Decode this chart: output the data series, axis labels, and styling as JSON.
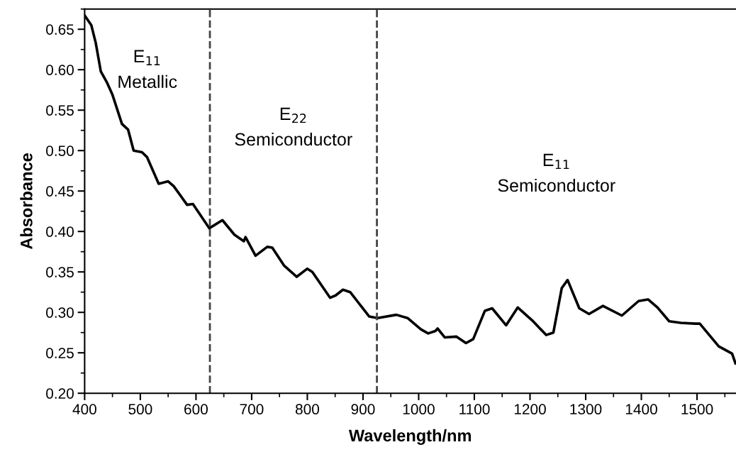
{
  "chart_data": {
    "type": "line",
    "xlabel": "Wavelength/nm",
    "ylabel": "Absorbance",
    "xlim": [
      400,
      1570
    ],
    "ylim": [
      0.2,
      0.675
    ],
    "xticks": [
      400,
      500,
      600,
      700,
      800,
      900,
      1000,
      1100,
      1200,
      1300,
      1400,
      1500
    ],
    "yticks": [
      {
        "value": 0.2,
        "label": "0.20"
      },
      {
        "value": 0.25,
        "label": "0.25"
      },
      {
        "value": 0.3,
        "label": "0.30"
      },
      {
        "value": 0.35,
        "label": "0.35"
      },
      {
        "value": 0.4,
        "label": "0.40"
      },
      {
        "value": 0.45,
        "label": "0.45"
      },
      {
        "value": 0.5,
        "label": "0.50"
      },
      {
        "value": 0.55,
        "label": "0.55"
      },
      {
        "value": 0.6,
        "label": "0.60"
      },
      {
        "value": 0.65,
        "label": "0.65"
      }
    ],
    "grid": false,
    "legend": false,
    "marker": "none",
    "line_style": "solid",
    "series": [
      {
        "color": "#000000",
        "x": [
          400,
          412,
          420,
          429,
          439.5,
          450,
          467,
          478,
          488,
          503,
          512,
          533,
          550,
          560,
          584,
          594.5,
          624,
          647.5,
          669,
          686,
          689,
          707,
          728,
          737,
          758,
          781,
          800,
          809,
          841,
          851,
          864,
          877,
          911,
          926,
          960,
          980,
          1004,
          1017,
          1030,
          1034,
          1047,
          1068,
          1085,
          1098,
          1119,
          1132,
          1157,
          1178,
          1204,
          1229,
          1242,
          1257,
          1267.5,
          1288.5,
          1306,
          1331,
          1365,
          1395,
          1412,
          1429,
          1450,
          1471,
          1497,
          1505,
          1539,
          1563,
          1569
        ],
        "values": [
          0.667,
          0.655,
          0.633,
          0.598,
          0.585,
          0.569,
          0.533,
          0.526,
          0.5,
          0.498,
          0.492,
          0.459,
          0.462,
          0.456,
          0.433,
          0.434,
          0.404,
          0.414,
          0.396,
          0.388,
          0.393,
          0.37,
          0.381,
          0.38,
          0.358,
          0.344,
          0.354,
          0.35,
          0.318,
          0.321,
          0.328,
          0.325,
          0.295,
          0.293,
          0.297,
          0.293,
          0.279,
          0.274,
          0.277,
          0.28,
          0.269,
          0.27,
          0.262,
          0.267,
          0.302,
          0.305,
          0.284,
          0.306,
          0.29,
          0.272,
          0.275,
          0.33,
          0.34,
          0.305,
          0.298,
          0.308,
          0.296,
          0.314,
          0.316,
          0.306,
          0.289,
          0.287,
          0.286,
          0.286,
          0.258,
          0.249,
          0.237
        ]
      }
    ],
    "ref_lines": [
      {
        "axis": "x",
        "value": 625,
        "color": "#444444",
        "line_style": "dashed"
      },
      {
        "axis": "x",
        "value": 925,
        "color": "#444444",
        "line_style": "dashed"
      }
    ],
    "annotations": [
      "E$_{11}$\nMetallic",
      "E$_{22}$\nSemiconductor",
      "E$_{11}$\nSemiconductor"
    ]
  }
}
